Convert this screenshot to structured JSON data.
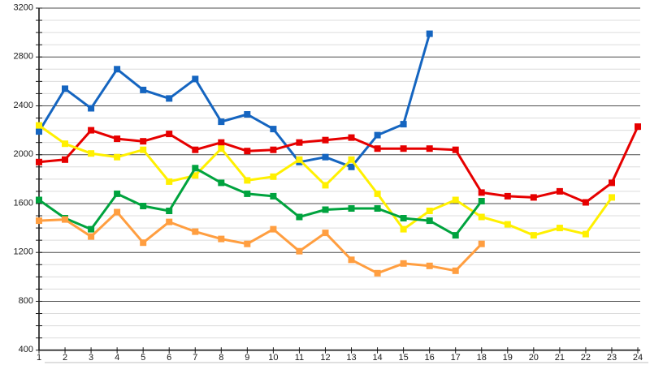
{
  "chart_data": {
    "type": "line",
    "title": "",
    "xlabel": "",
    "ylabel": "",
    "x": [
      1,
      2,
      3,
      4,
      5,
      6,
      7,
      8,
      9,
      10,
      11,
      12,
      13,
      14,
      15,
      16,
      17,
      18,
      19,
      20,
      21,
      22,
      23,
      24
    ],
    "x_tick_labels": [
      "1",
      "2",
      "3",
      "4",
      "5",
      "6",
      "7",
      "8",
      "9",
      "10",
      "11",
      "12",
      "13",
      "14",
      "15",
      "16",
      "17",
      "18",
      "19",
      "20",
      "21",
      "22",
      "23",
      "24"
    ],
    "y_axis": {
      "min": 400,
      "max": 3200,
      "major_step": 400,
      "minor_step": 100,
      "tick_labels": [
        "3200",
        "2800",
        "2400",
        "2000",
        "1600",
        "1200",
        "800",
        "400"
      ]
    },
    "grid": {
      "horizontal_major": true,
      "horizontal_minor": true,
      "vertical": false
    },
    "legend": "none",
    "series": [
      {
        "name": "blue",
        "color": "#1565C0",
        "start_x": 1,
        "values": [
          2190,
          2540,
          2380,
          2700,
          2530,
          2460,
          2620,
          2270,
          2330,
          2210,
          1940,
          1980,
          1900,
          2160,
          2250,
          2990
        ]
      },
      {
        "name": "red",
        "color": "#E60000",
        "start_x": 1,
        "values": [
          1940,
          1960,
          2200,
          2130,
          2110,
          2170,
          2040,
          2100,
          2030,
          2040,
          2100,
          2120,
          2140,
          2050,
          2050,
          2050,
          2040,
          1690,
          1660,
          1650,
          1700,
          1610,
          1770,
          2230
        ]
      },
      {
        "name": "yellow",
        "color": "#FFF000",
        "start_x": 1,
        "values": [
          2240,
          2090,
          2010,
          1980,
          2040,
          1780,
          1830,
          2050,
          1790,
          1820,
          1960,
          1750,
          1960,
          1680,
          1390,
          1540,
          1630,
          1490,
          1430,
          1340,
          1400,
          1350,
          1650
        ]
      },
      {
        "name": "green",
        "color": "#00A33E",
        "start_x": 1,
        "values": [
          1630,
          1480,
          1390,
          1680,
          1580,
          1540,
          1890,
          1770,
          1680,
          1660,
          1490,
          1550,
          1560,
          1560,
          1480,
          1460,
          1340,
          1620
        ]
      },
      {
        "name": "orange",
        "color": "#FF9E40",
        "start_x": 1,
        "values": [
          1460,
          1470,
          1330,
          1530,
          1280,
          1450,
          1370,
          1310,
          1270,
          1390,
          1210,
          1360,
          1140,
          1030,
          1110,
          1090,
          1050,
          1270
        ]
      }
    ]
  },
  "colors": {
    "background": "#ffffff",
    "minor_grid": "#dcdcdc",
    "major_grid": "#4d4d4d",
    "axis": "#1a1a1a",
    "label_text": "#1a1a1a",
    "bottom_shadow": "#cccccc"
  }
}
